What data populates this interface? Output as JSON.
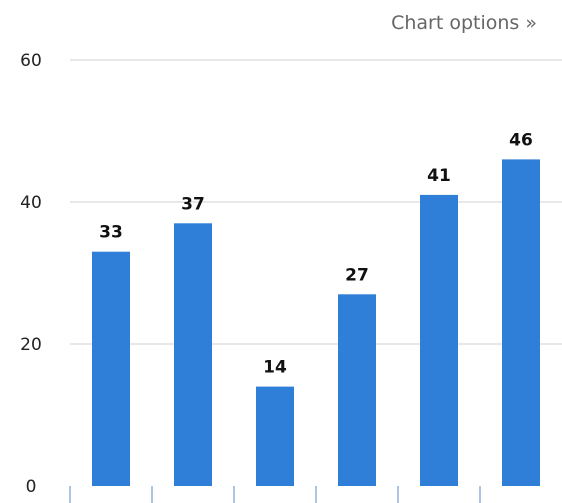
{
  "header": {
    "options_link": "Chart options »"
  },
  "colors": {
    "bar": "#2f7ed8",
    "grid": "#d9d9d9",
    "axis_ticks": "#7fa7d6"
  },
  "chart_data": {
    "type": "bar",
    "categories": [
      "",
      "",
      "",
      "",
      "",
      ""
    ],
    "values": [
      33,
      37,
      14,
      27,
      41,
      46
    ],
    "data_labels": [
      "33",
      "37",
      "14",
      "27",
      "41",
      "46"
    ],
    "ylim": [
      0,
      60
    ],
    "yticks": [
      0,
      20,
      40,
      60
    ],
    "ytick_labels": [
      "0",
      "20",
      "40",
      "60"
    ],
    "grid": true,
    "title": "",
    "xlabel": "",
    "ylabel": ""
  }
}
